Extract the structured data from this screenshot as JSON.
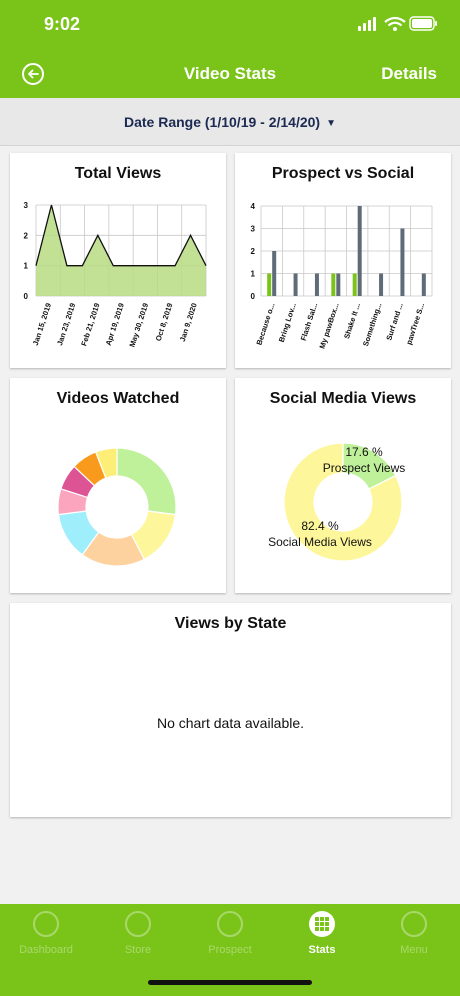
{
  "status": {
    "time": "9:02"
  },
  "nav": {
    "title": "Video Stats",
    "details": "Details"
  },
  "date_range": {
    "label": "Date Range (1/10/19 - 2/14/20)",
    "caret": "▼"
  },
  "colors": {
    "brand": "#7ac41a",
    "header_text": "#ffffff",
    "bar_dark": "#5f6b78",
    "area_fill": "#b8dc82"
  },
  "cards": {
    "total_views": {
      "title": "Total Views"
    },
    "prospect_social": {
      "title": "Prospect vs Social"
    },
    "videos_watched": {
      "title": "Videos Watched"
    },
    "social_media_views": {
      "title": "Social Media Views"
    },
    "views_by_state": {
      "title": "Views by State",
      "empty": "No chart data available."
    }
  },
  "chart_data": [
    {
      "id": "total_views",
      "type": "area",
      "title": "Total Views",
      "x_labels": [
        "Jan 15, 2019",
        "Jan 23, 2019",
        "Feb 21, 2019",
        "Apr 19, 2019",
        "May 30, 2019",
        "Oct 8, 2019",
        "Jan 9, 2020"
      ],
      "y_ticks": [
        0,
        1,
        2,
        3
      ],
      "ylim": [
        0,
        3
      ],
      "values": [
        1,
        3,
        1,
        1,
        2,
        1,
        1,
        1,
        1,
        1,
        2,
        1
      ],
      "grid": true
    },
    {
      "id": "prospect_social",
      "type": "bar",
      "title": "Prospect vs Social",
      "categories": [
        "Because o...",
        "Bring Lov...",
        "Flash Sal...",
        "My pawBox...",
        "Shake It ...",
        "Something...",
        "Surf and ...",
        "pawTree S..."
      ],
      "y_ticks": [
        0,
        1,
        2,
        3,
        4
      ],
      "ylim": [
        0,
        4
      ],
      "series": [
        {
          "color": "#7ac41a",
          "values": [
            1,
            0,
            0,
            1,
            1,
            0,
            0,
            0
          ]
        },
        {
          "color": "#5f6b78",
          "values": [
            2,
            1,
            1,
            1,
            4,
            1,
            3,
            1
          ]
        }
      ],
      "grid": true
    },
    {
      "id": "videos_watched",
      "type": "pie",
      "donut": true,
      "slices": [
        {
          "value": 23,
          "color": "#bff09a"
        },
        {
          "value": 13,
          "color": "#fef69a"
        },
        {
          "value": 15,
          "color": "#fed29e"
        },
        {
          "value": 11,
          "color": "#9feefc"
        },
        {
          "value": 6,
          "color": "#fca5bf"
        },
        {
          "value": 6,
          "color": "#dc5494"
        },
        {
          "value": 6,
          "color": "#fa9a1c"
        },
        {
          "value": 5,
          "color": "#fcee76"
        }
      ]
    },
    {
      "id": "social_media_views",
      "type": "pie",
      "donut": true,
      "slices": [
        {
          "name": "Prospect Views",
          "value": 17.6,
          "label": "17.6 %",
          "color": "#bff09a"
        },
        {
          "name": "Social Media Views",
          "value": 82.4,
          "label": "82.4 %",
          "color": "#fef69a"
        }
      ]
    }
  ],
  "tabs": [
    {
      "label": "Dashboard",
      "active": false
    },
    {
      "label": "Store",
      "active": false
    },
    {
      "label": "Prospect",
      "active": false
    },
    {
      "label": "Stats",
      "active": true
    },
    {
      "label": "Menu",
      "active": false
    }
  ]
}
